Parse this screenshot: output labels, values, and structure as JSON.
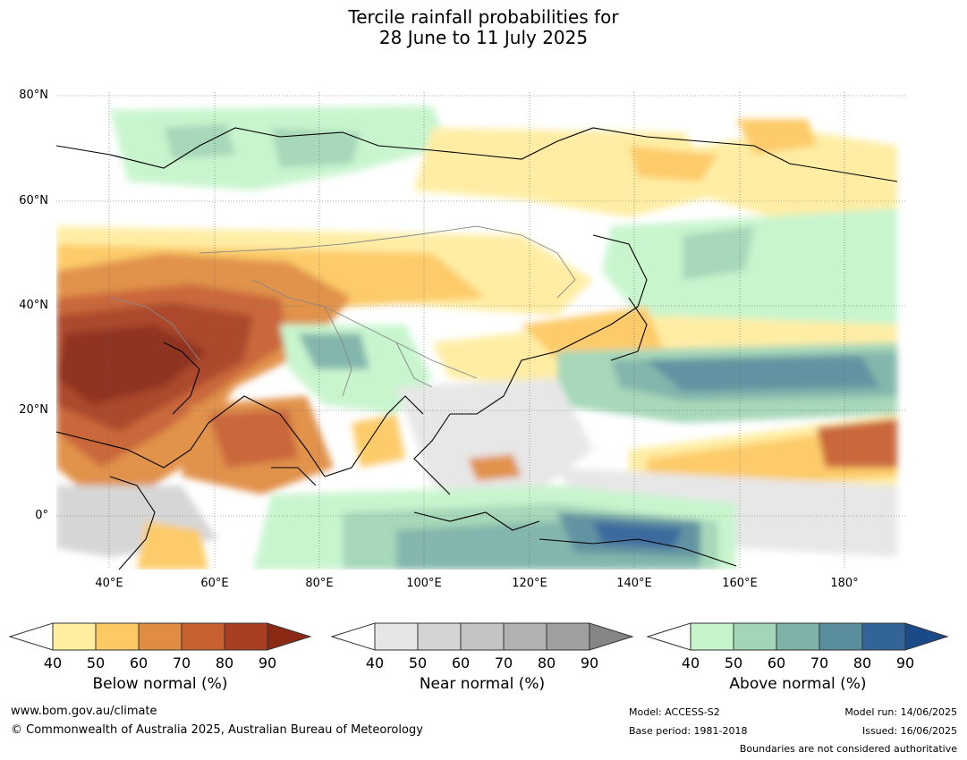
{
  "title": {
    "line1": "Tercile rainfall probabilities for",
    "line2": "28 June to 11 July 2025"
  },
  "map": {
    "lat_labels": [
      "80°N",
      "60°N",
      "40°N",
      "20°N",
      "0°"
    ],
    "lon_labels": [
      "40°E",
      "60°E",
      "80°E",
      "100°E",
      "120°E",
      "140°E",
      "160°E",
      "180°"
    ]
  },
  "colorbars": [
    {
      "title": "Below normal (%)",
      "ticks": [
        "40",
        "50",
        "60",
        "70",
        "80",
        "90"
      ],
      "colors": [
        "#ffffff",
        "#ffeda0",
        "#fdc962",
        "#e08d43",
        "#c86030",
        "#a83f22",
        "#8a2a15"
      ]
    },
    {
      "title": "Near normal (%)",
      "ticks": [
        "40",
        "50",
        "60",
        "70",
        "80",
        "90"
      ],
      "colors": [
        "#ffffff",
        "#e6e6e6",
        "#d4d4d4",
        "#c4c4c4",
        "#b2b2b2",
        "#a0a0a0",
        "#858585"
      ]
    },
    {
      "title": "Above normal (%)",
      "ticks": [
        "40",
        "50",
        "60",
        "70",
        "80",
        "90"
      ],
      "colors": [
        "#ffffff",
        "#c6f5cc",
        "#a2d6b6",
        "#7db3a8",
        "#5a8e9e",
        "#336499",
        "#1a4a88"
      ]
    }
  ],
  "footer": {
    "website": "www.bom.gov.au/climate",
    "copyright": "© Commonwealth of Australia 2025, Australian Bureau of Meteorology",
    "model": "Model: ACCESS-S2",
    "base_period": "Base period: 1981-2018",
    "model_run": "Model run: 14/06/2025",
    "issued": "Issued: 16/06/2025",
    "disclaimer": "Boundaries are not considered authoritative"
  }
}
